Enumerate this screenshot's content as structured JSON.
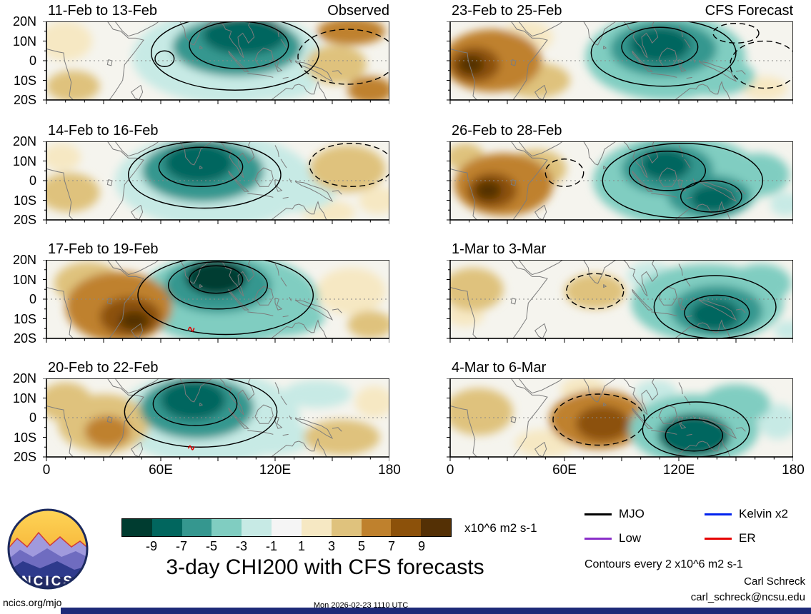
{
  "chart_data": {
    "type": "heatmap",
    "title": "3-day CHI200 with CFS forecasts",
    "unit_label": "x10^6 m2 s-1",
    "contour_note": "Contours every 2 x10^6 m2 s-1",
    "axes": {
      "x_ticks": [
        "0",
        "60E",
        "120E",
        "180"
      ],
      "y_ticks": [
        "20N",
        "10N",
        "0",
        "10S",
        "20S"
      ],
      "x_range_deg": [
        0,
        180
      ],
      "y_range_deg": [
        -20,
        20
      ]
    },
    "colorbar": {
      "ticks": [
        -9,
        -7,
        -5,
        -3,
        -1,
        1,
        3,
        5,
        7,
        9
      ],
      "labels": [
        "-9",
        "-7",
        "-5",
        "-3",
        "-1",
        "1",
        "3",
        "5",
        "7",
        "9"
      ],
      "colors": [
        "#003c30",
        "#01665e",
        "#35978f",
        "#80cdc1",
        "#c7eae5",
        "#f5f5f5",
        "#f6e8c3",
        "#dfc27d",
        "#bf812d",
        "#8c510a",
        "#543005"
      ]
    },
    "legend": [
      {
        "label": "MJO",
        "color": "#000000"
      },
      {
        "label": "Kelvin x2",
        "color": "#0022ee"
      },
      {
        "label": "Low",
        "color": "#8b2fc9"
      },
      {
        "label": "ER",
        "color": "#e60000"
      }
    ],
    "panels": [
      {
        "title": "11-Feb to 13-Feb",
        "corner": "Observed",
        "blobs": [
          [
            95,
            2,
            50,
            24,
            -3
          ],
          [
            100,
            7,
            34,
            15,
            -6
          ],
          [
            104,
            13,
            22,
            10,
            -9
          ],
          [
            88,
            6,
            12,
            8,
            -7
          ],
          [
            120,
            -12,
            22,
            8,
            -3
          ],
          [
            10,
            10,
            14,
            10,
            2
          ],
          [
            14,
            -13,
            14,
            8,
            3
          ],
          [
            160,
            15,
            18,
            7,
            5
          ],
          [
            152,
            -2,
            16,
            10,
            3
          ],
          [
            170,
            -15,
            12,
            7,
            5
          ]
        ],
        "contours": [
          [
            99,
            4,
            44,
            19,
            "solid"
          ],
          [
            101,
            8,
            26,
            12,
            "solid"
          ],
          [
            62,
            1,
            5,
            4,
            "solid"
          ],
          [
            158,
            2,
            26,
            14,
            "dashed"
          ]
        ],
        "red_marks": []
      },
      {
        "title": "14-Feb to 16-Feb",
        "corner": "",
        "blobs": [
          [
            88,
            0,
            52,
            24,
            -3
          ],
          [
            82,
            5,
            32,
            16,
            -6
          ],
          [
            80,
            9,
            18,
            10,
            -9
          ],
          [
            130,
            -6,
            22,
            10,
            -3
          ],
          [
            12,
            -6,
            16,
            10,
            3
          ],
          [
            8,
            12,
            10,
            7,
            2
          ],
          [
            158,
            6,
            20,
            12,
            3
          ],
          [
            174,
            -10,
            10,
            7,
            2
          ],
          [
            148,
            -16,
            14,
            6,
            2
          ]
        ],
        "contours": [
          [
            83,
            3,
            40,
            17,
            "solid"
          ],
          [
            81,
            7,
            22,
            10,
            "solid"
          ],
          [
            160,
            8,
            22,
            11,
            "dashed"
          ]
        ],
        "red_marks": []
      },
      {
        "title": "17-Feb to 19-Feb",
        "corner": "",
        "blobs": [
          [
            38,
            -4,
            28,
            18,
            5
          ],
          [
            44,
            -9,
            16,
            10,
            8
          ],
          [
            46,
            -11,
            8,
            5,
            9
          ],
          [
            22,
            8,
            18,
            11,
            4
          ],
          [
            95,
            0,
            48,
            23,
            -4
          ],
          [
            90,
            7,
            28,
            14,
            -7
          ],
          [
            89,
            11,
            16,
            9,
            -10
          ],
          [
            122,
            -9,
            24,
            10,
            -4
          ],
          [
            160,
            4,
            18,
            12,
            2
          ],
          [
            170,
            -13,
            12,
            7,
            3
          ]
        ],
        "contours": [
          [
            94,
            2,
            46,
            20,
            "solid"
          ],
          [
            90,
            7,
            26,
            12,
            "solid"
          ],
          [
            89,
            10,
            14,
            7,
            "solid"
          ]
        ],
        "red_marks": [
          [
            76,
            -15
          ]
        ]
      },
      {
        "title": "20-Feb to 22-Feb",
        "corner": "",
        "blobs": [
          [
            30,
            -3,
            24,
            15,
            4
          ],
          [
            32,
            -7,
            12,
            8,
            6
          ],
          [
            10,
            8,
            14,
            10,
            3
          ],
          [
            85,
            0,
            48,
            24,
            -3
          ],
          [
            79,
            5,
            30,
            16,
            -6
          ],
          [
            77,
            9,
            17,
            10,
            -9
          ],
          [
            118,
            -10,
            22,
            9,
            -3
          ],
          [
            155,
            -10,
            20,
            9,
            3
          ],
          [
            172,
            8,
            10,
            8,
            2
          ],
          [
            142,
            12,
            18,
            7,
            -3
          ]
        ],
        "contours": [
          [
            81,
            3,
            40,
            18,
            "solid"
          ],
          [
            78,
            7,
            22,
            11,
            "solid"
          ]
        ],
        "red_marks": [
          [
            76,
            -15
          ]
        ]
      },
      {
        "title": "23-Feb to 25-Feb",
        "corner": "CFS Forecast",
        "blobs": [
          [
            22,
            0,
            26,
            16,
            5
          ],
          [
            13,
            -2,
            13,
            9,
            8
          ],
          [
            11,
            -2,
            7,
            5,
            9
          ],
          [
            45,
            -10,
            18,
            9,
            3
          ],
          [
            40,
            12,
            14,
            8,
            2
          ],
          [
            113,
            2,
            42,
            22,
            -4
          ],
          [
            112,
            6,
            28,
            14,
            -7
          ],
          [
            110,
            8,
            16,
            9,
            -9
          ],
          [
            138,
            -8,
            22,
            10,
            -4
          ],
          [
            165,
            -14,
            12,
            6,
            2
          ]
        ],
        "contours": [
          [
            112,
            4,
            38,
            17,
            "solid"
          ],
          [
            110,
            7,
            20,
            10,
            "solid"
          ],
          [
            165,
            -2,
            18,
            12,
            "dashed"
          ],
          [
            150,
            14,
            12,
            5,
            "dashed"
          ]
        ],
        "red_marks": []
      },
      {
        "title": "26-Feb to 28-Feb",
        "corner": "",
        "blobs": [
          [
            28,
            -2,
            26,
            16,
            5
          ],
          [
            22,
            -5,
            13,
            9,
            8
          ],
          [
            20,
            -5,
            7,
            5,
            9
          ],
          [
            45,
            6,
            16,
            10,
            4
          ],
          [
            8,
            12,
            10,
            7,
            3
          ],
          [
            120,
            0,
            45,
            23,
            -4
          ],
          [
            114,
            6,
            24,
            13,
            -7
          ],
          [
            113,
            8,
            13,
            8,
            -9
          ],
          [
            136,
            -8,
            22,
            11,
            -7
          ],
          [
            138,
            -9,
            12,
            7,
            -9
          ],
          [
            162,
            3,
            16,
            11,
            -4
          ],
          [
            176,
            -12,
            8,
            6,
            -2
          ]
        ],
        "contours": [
          [
            122,
            0,
            42,
            19,
            "solid"
          ],
          [
            114,
            5,
            20,
            10,
            "solid"
          ],
          [
            137,
            -8,
            16,
            8,
            "solid"
          ],
          [
            60,
            4,
            10,
            7,
            "dashed"
          ]
        ],
        "red_marks": []
      },
      {
        "title": "1-Mar to 3-Mar",
        "corner": "",
        "blobs": [
          [
            12,
            5,
            16,
            11,
            3
          ],
          [
            8,
            -8,
            10,
            6,
            2
          ],
          [
            76,
            4,
            16,
            9,
            4
          ],
          [
            135,
            -2,
            40,
            20,
            -4
          ],
          [
            140,
            -6,
            24,
            13,
            -7
          ],
          [
            139,
            -8,
            13,
            8,
            -9
          ],
          [
            163,
            8,
            16,
            10,
            -4
          ],
          [
            105,
            12,
            12,
            7,
            -2
          ],
          [
            178,
            -16,
            8,
            5,
            -3
          ]
        ],
        "contours": [
          [
            76,
            4,
            15,
            9,
            "dashed"
          ],
          [
            139,
            -4,
            32,
            16,
            "solid"
          ],
          [
            140,
            -7,
            17,
            9,
            "solid"
          ]
        ],
        "red_marks": []
      },
      {
        "title": "4-Mar to 6-Mar",
        "corner": "",
        "blobs": [
          [
            15,
            3,
            18,
            12,
            3
          ],
          [
            50,
            -13,
            16,
            7,
            2
          ],
          [
            78,
            -1,
            26,
            15,
            5
          ],
          [
            80,
            -3,
            14,
            9,
            7
          ],
          [
            82,
            -3,
            7,
            5,
            8
          ],
          [
            70,
            14,
            12,
            7,
            2
          ],
          [
            128,
            -6,
            34,
            18,
            -5
          ],
          [
            128,
            -9,
            19,
            11,
            -8
          ],
          [
            127,
            -10,
            10,
            6,
            -9
          ],
          [
            150,
            7,
            18,
            10,
            -4
          ],
          [
            172,
            -2,
            10,
            9,
            -3
          ],
          [
            108,
            13,
            11,
            6,
            -2
          ]
        ],
        "contours": [
          [
            78,
            -1,
            24,
            13,
            "dashed"
          ],
          [
            129,
            -6,
            28,
            14,
            "solid"
          ],
          [
            128,
            -9,
            15,
            8,
            "solid"
          ]
        ],
        "red_marks": []
      }
    ]
  },
  "footer": {
    "site": "ncics.org/mjo",
    "timestamp": "Mon 2026-02-23 1110 UTC",
    "credit_name": "Carl Schreck",
    "credit_email": "carl_schreck@ncsu.edu"
  },
  "logo": {
    "text": "NCICS"
  }
}
